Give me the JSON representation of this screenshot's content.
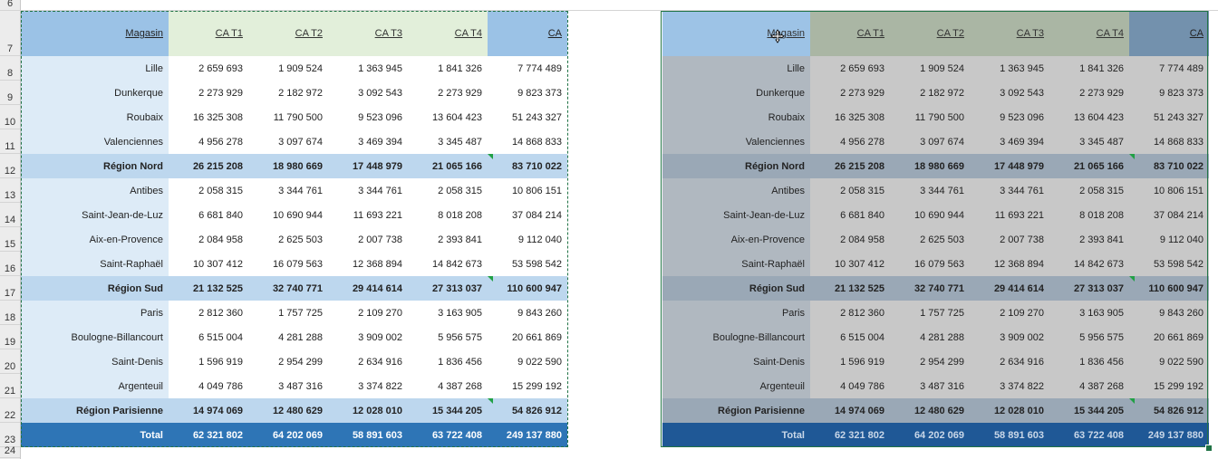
{
  "row_numbers": [
    "6",
    "7",
    "8",
    "9",
    "10",
    "11",
    "12",
    "13",
    "14",
    "15",
    "16",
    "17",
    "18",
    "19",
    "20",
    "21",
    "22",
    "23",
    "24"
  ],
  "headers": [
    "Magasin",
    "CA T1",
    "CA T2",
    "CA T3",
    "CA T4",
    "CA"
  ],
  "rows": [
    {
      "type": "city",
      "cells": [
        "Lille",
        "2 659 693",
        "1 909 524",
        "1 363 945",
        "1 841 326",
        "7 774 489"
      ]
    },
    {
      "type": "city",
      "cells": [
        "Dunkerque",
        "2 273 929",
        "2 182 972",
        "3 092 543",
        "2 273 929",
        "9 823 373"
      ]
    },
    {
      "type": "city",
      "cells": [
        "Roubaix",
        "16 325 308",
        "11 790 500",
        "9 523 096",
        "13 604 423",
        "51 243 327"
      ]
    },
    {
      "type": "city",
      "cells": [
        "Valenciennes",
        "4 956 278",
        "3 097 674",
        "3 469 394",
        "3 345 487",
        "14 868 833"
      ]
    },
    {
      "type": "sub",
      "cells": [
        "Région Nord",
        "26 215 208",
        "18 980 669",
        "17 448 979",
        "21 065 166",
        "83 710 022"
      ]
    },
    {
      "type": "city",
      "cells": [
        "Antibes",
        "2 058 315",
        "3 344 761",
        "3 344 761",
        "2 058 315",
        "10 806 151"
      ]
    },
    {
      "type": "city",
      "cells": [
        "Saint-Jean-de-Luz",
        "6 681 840",
        "10 690 944",
        "11 693 221",
        "8 018 208",
        "37 084 214"
      ]
    },
    {
      "type": "city",
      "cells": [
        "Aix-en-Provence",
        "2 084 958",
        "2 625 503",
        "2 007 738",
        "2 393 841",
        "9 112 040"
      ]
    },
    {
      "type": "city",
      "cells": [
        "Saint-Raphaël",
        "10 307 412",
        "16 079 563",
        "12 368 894",
        "14 842 673",
        "53 598 542"
      ]
    },
    {
      "type": "sub",
      "cells": [
        "Région Sud",
        "21 132 525",
        "32 740 771",
        "29 414 614",
        "27 313 037",
        "110 600 947"
      ]
    },
    {
      "type": "city",
      "cells": [
        "Paris",
        "2 812 360",
        "1 757 725",
        "2 109 270",
        "3 163 905",
        "9 843 260"
      ]
    },
    {
      "type": "city",
      "cells": [
        "Boulogne-Billancourt",
        "6 515 004",
        "4 281 288",
        "3 909 002",
        "5 956 575",
        "20 661 869"
      ]
    },
    {
      "type": "city",
      "cells": [
        "Saint-Denis",
        "1 596 919",
        "2 954 299",
        "2 634 916",
        "1 836 456",
        "9 022 590"
      ]
    },
    {
      "type": "city",
      "cells": [
        "Argenteuil",
        "4 049 786",
        "3 487 316",
        "3 374 822",
        "4 387 268",
        "15 299 192"
      ]
    },
    {
      "type": "sub",
      "cells": [
        "Région Parisienne",
        "14 974 069",
        "12 480 629",
        "12 028 010",
        "15 344 205",
        "54 826 912"
      ]
    },
    {
      "type": "tot",
      "cells": [
        "Total",
        "62 321 802",
        "64 202 069",
        "58 891 603",
        "63 722 408",
        "249 137 880"
      ]
    }
  ],
  "colors": {
    "left_total": "#2e75b6",
    "right_total": "#1f5896",
    "selection_border": "#217346"
  },
  "icons": {
    "cursor": "move-cursor-icon",
    "error_indicator": "green-triangle-icon"
  }
}
